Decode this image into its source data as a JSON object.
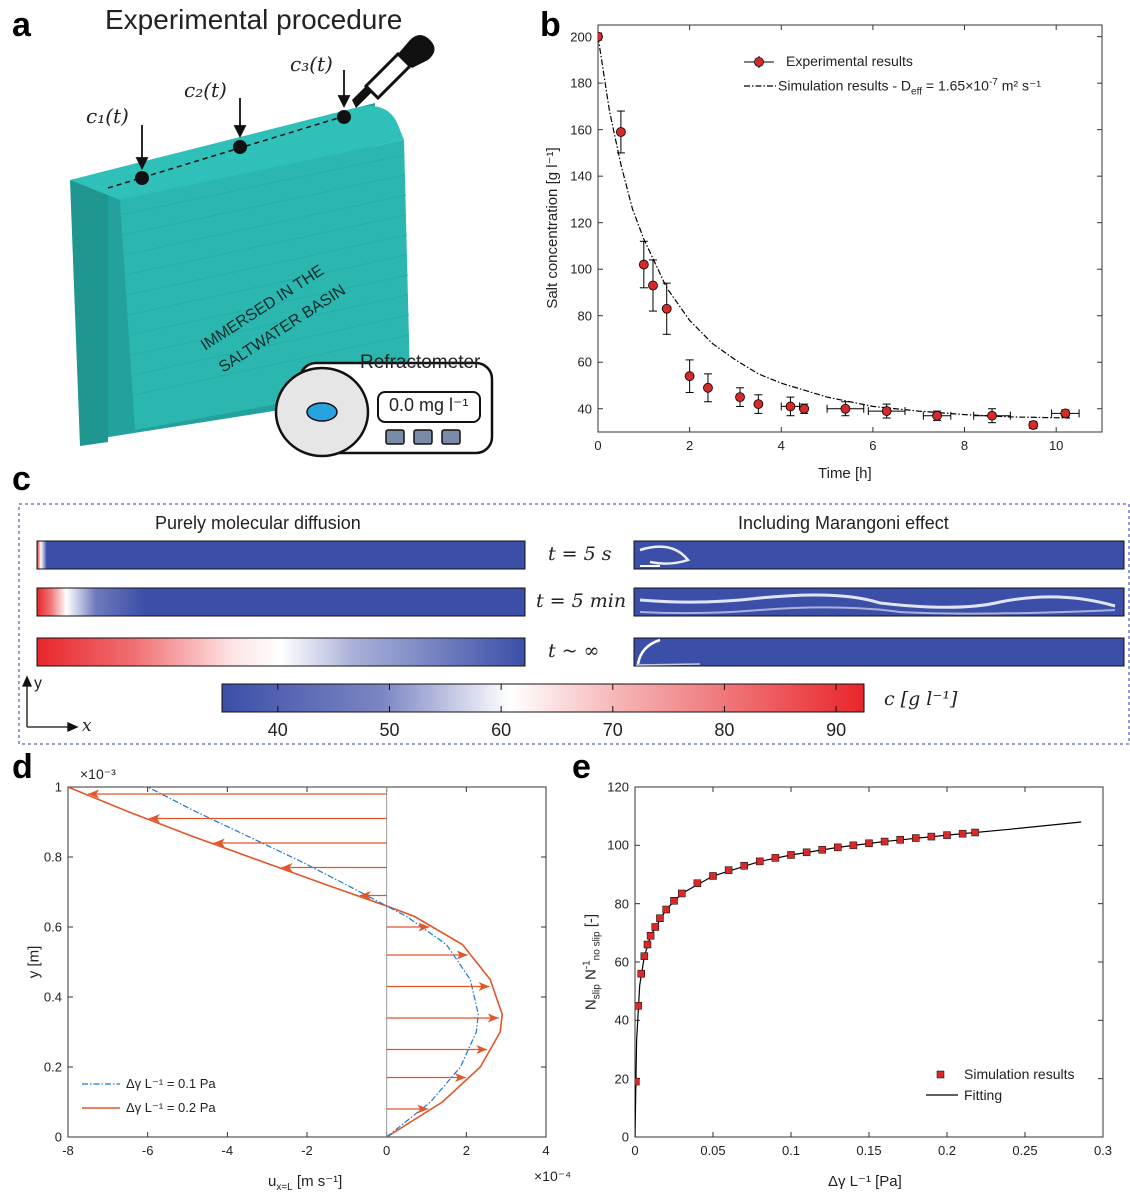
{
  "panels": {
    "a": "a",
    "b": "b",
    "c": "c",
    "d": "d",
    "e": "e"
  },
  "panel_a": {
    "title": "Experimental procedure",
    "points": [
      "c₁(t)",
      "c₂(t)",
      "c₃(t)"
    ],
    "basin_text_line1": "IMMERSED IN THE",
    "basin_text_line2": "SALTWATER BASIN",
    "refractometer_label": "Refractometer",
    "refractometer_display": "0.0 mg l⁻¹",
    "colors": {
      "fabric": "#2bb6b0",
      "fabric_side": "#1e8f8b",
      "lens": "#29a3e0"
    }
  },
  "panel_c": {
    "left_title": "Purely molecular diffusion",
    "right_title": "Including Marangoni effect",
    "time_labels": [
      "t = 5 s",
      "t = 5 min",
      "t ~ ∞"
    ],
    "colorbar_label": "c [g l⁻¹]",
    "colorbar_ticks": [
      "40",
      "50",
      "60",
      "70",
      "80",
      "90"
    ],
    "axis_y": "y",
    "axis_x": "x",
    "colors": {
      "low": "#3b4fa8",
      "mid": "#ffffff",
      "high": "#e8262b"
    }
  },
  "chart_data": [
    {
      "type": "scatter",
      "panel": "b",
      "xlabel": "Time [h]",
      "ylabel": "Salt concentration [g l⁻¹]",
      "xlim": [
        0,
        11
      ],
      "ylim": [
        30,
        205
      ],
      "xticks": [
        "0",
        "2",
        "4",
        "6",
        "8",
        "10"
      ],
      "yticks": [
        "40",
        "60",
        "80",
        "100",
        "120",
        "140",
        "160",
        "180",
        "200"
      ],
      "legend_position": "top-right",
      "series": [
        {
          "name": "Experimental results",
          "marker": "circle",
          "color": "#d62a2a",
          "x": [
            0,
            0.5,
            1.0,
            1.2,
            1.5,
            2.0,
            2.4,
            3.1,
            3.5,
            4.2,
            4.5,
            5.4,
            6.3,
            7.4,
            8.6,
            9.5,
            10.2
          ],
          "y": [
            200,
            159,
            102,
            93,
            83,
            54,
            49,
            45,
            42,
            41,
            40,
            40,
            39,
            37,
            37,
            33,
            38
          ],
          "yerr": [
            1.5,
            9,
            10,
            11,
            11,
            7,
            6,
            4,
            4,
            4,
            2,
            3,
            3,
            2,
            3,
            1.5,
            1.5
          ],
          "xerr": [
            0,
            0,
            0,
            0,
            0,
            0,
            0,
            0,
            0,
            0.2,
            0,
            0.4,
            0.4,
            0.3,
            0.4,
            0,
            0.3
          ]
        },
        {
          "name": "Simulation results - D",
          "name_sub": "eff",
          "name_tail": " = 1.65×10",
          "name_sup": "-7",
          "name_end": " m² s⁻¹",
          "style": "dash-dot",
          "color": "#000000",
          "x": [
            0,
            0.25,
            0.5,
            0.75,
            1,
            1.5,
            2,
            2.5,
            3,
            3.5,
            4,
            5,
            6,
            7,
            8,
            9,
            10.3
          ],
          "y": [
            200,
            168,
            145,
            126,
            113,
            92,
            78,
            68,
            61,
            55,
            51,
            45,
            41,
            39,
            37.5,
            36.5,
            36
          ]
        }
      ]
    },
    {
      "type": "line",
      "panel": "d",
      "xlabel": "u",
      "xlabel_sub": "x=L",
      "xlabel_tail": " [m s⁻¹]",
      "ylabel": "y [m]",
      "x_exponent": "×10⁻⁴",
      "y_exponent": "×10⁻³",
      "xlim": [
        -8,
        4
      ],
      "ylim": [
        0,
        1
      ],
      "xticks": [
        "-8",
        "-6",
        "-4",
        "-2",
        "0",
        "2",
        "4"
      ],
      "yticks": [
        "0",
        "0.2",
        "0.4",
        "0.6",
        "0.8",
        "1"
      ],
      "legend_position": "bottom-left",
      "series": [
        {
          "name": "Δγ L⁻¹ = 0.1 Pa",
          "style": "dash-dot",
          "color": "#1f77d4",
          "x": [
            0,
            1.1,
            1.85,
            2.25,
            2.3,
            2.1,
            1.5,
            0.5,
            0,
            -1.0,
            -2.2,
            -3.5,
            -4.8,
            -6.0
          ],
          "y": [
            0,
            0.1,
            0.2,
            0.3,
            0.35,
            0.45,
            0.55,
            0.63,
            0.66,
            0.72,
            0.79,
            0.86,
            0.93,
            1.0
          ]
        },
        {
          "name": "Δγ L⁻¹ = 0.2 Pa",
          "style": "solid",
          "color": "#e0562a",
          "x": [
            0,
            1.4,
            2.35,
            2.85,
            2.9,
            2.6,
            1.9,
            0.7,
            0,
            -1.5,
            -3.2,
            -4.9,
            -6.5,
            -8.0
          ],
          "y": [
            0,
            0.1,
            0.2,
            0.3,
            0.35,
            0.45,
            0.55,
            0.63,
            0.66,
            0.72,
            0.79,
            0.86,
            0.93,
            1.0
          ]
        }
      ]
    },
    {
      "type": "scatter",
      "panel": "e",
      "xlabel": "Δγ L⁻¹ [Pa]",
      "ylabel": "N",
      "ylabel_sub1": "slip",
      "ylabel_mid": " N",
      "ylabel_sup": "-1",
      "ylabel_sub2": "no slip",
      "ylabel_tail": " [-]",
      "xlim": [
        0,
        0.3
      ],
      "ylim": [
        0,
        120
      ],
      "xticks": [
        "0",
        "0.05",
        "0.1",
        "0.15",
        "0.2",
        "0.25",
        "0.3"
      ],
      "yticks": [
        "0",
        "20",
        "40",
        "60",
        "80",
        "100",
        "120"
      ],
      "legend_position": "bottom-right",
      "series": [
        {
          "name": "Simulation results",
          "marker": "square",
          "color": "#d62a2a",
          "x": [
            0.0005,
            0.002,
            0.004,
            0.006,
            0.008,
            0.01,
            0.013,
            0.016,
            0.02,
            0.025,
            0.03,
            0.04,
            0.05,
            0.06,
            0.07,
            0.08,
            0.09,
            0.1,
            0.11,
            0.12,
            0.13,
            0.14,
            0.15,
            0.16,
            0.17,
            0.18,
            0.19,
            0.2,
            0.21,
            0.218
          ],
          "y": [
            19,
            45,
            56,
            62,
            66,
            69,
            72,
            75,
            78,
            81,
            83.5,
            87,
            89.5,
            91.5,
            93,
            94.5,
            95.7,
            96.7,
            97.6,
            98.5,
            99.3,
            100,
            100.7,
            101.3,
            101.9,
            102.5,
            103,
            103.5,
            104,
            104.4
          ]
        },
        {
          "name": "Fitting",
          "style": "solid",
          "color": "#000000",
          "x": [
            0,
            0.001,
            0.003,
            0.006,
            0.01,
            0.02,
            0.03,
            0.05,
            0.08,
            0.1,
            0.13,
            0.16,
            0.2,
            0.24,
            0.286
          ],
          "y": [
            0,
            33,
            52,
            62,
            69,
            78,
            83.5,
            89.5,
            94.5,
            96.7,
            99.3,
            101.3,
            103.5,
            105.5,
            108
          ]
        }
      ]
    }
  ]
}
